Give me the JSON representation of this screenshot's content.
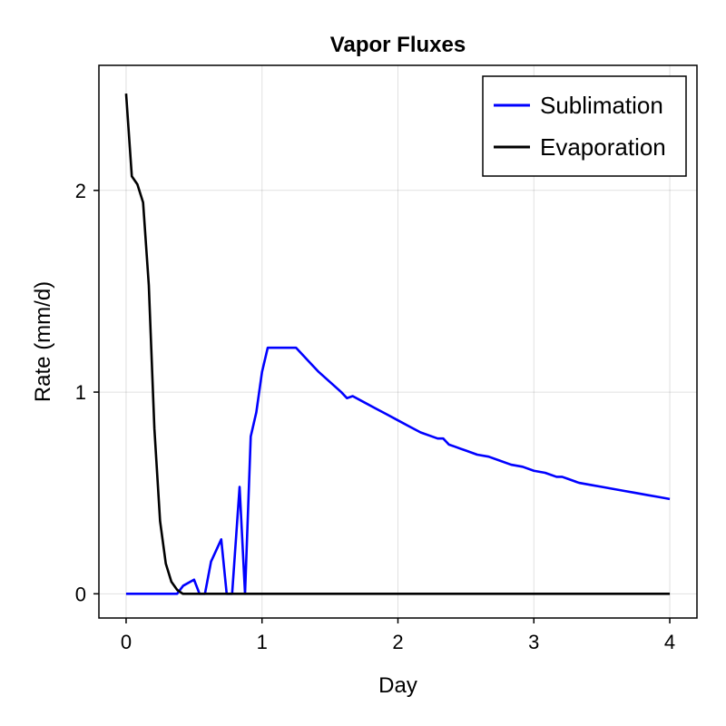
{
  "chart_data": {
    "type": "line",
    "title": "Vapor Fluxes",
    "xlabel": "Day",
    "ylabel": "Rate (mm/d)",
    "xlim": [
      -0.2,
      4.2
    ],
    "ylim": [
      -0.12,
      2.62
    ],
    "xticks": [
      0,
      1,
      2,
      3,
      4
    ],
    "xtick_labels": [
      "0",
      "1",
      "2",
      "3",
      "4"
    ],
    "yticks": [
      0,
      1,
      2
    ],
    "ytick_labels": [
      "0",
      "1",
      "2"
    ],
    "grid": true,
    "legend_position": "top-right",
    "series": [
      {
        "name": "Sublimation",
        "color": "#0000ff",
        "x": [
          0,
          0.05,
          0.1,
          0.15,
          0.2,
          0.25,
          0.3,
          0.35,
          0.375,
          0.42,
          0.5,
          0.54,
          0.58,
          0.625,
          0.7,
          0.74,
          0.78,
          0.835,
          0.875,
          0.917,
          0.958,
          1.0,
          1.042,
          1.083,
          1.125,
          1.167,
          1.208,
          1.25,
          1.333,
          1.417,
          1.5,
          1.583,
          1.625,
          1.667,
          1.75,
          1.833,
          1.917,
          2.0,
          2.083,
          2.167,
          2.25,
          2.292,
          2.333,
          2.375,
          2.417,
          2.5,
          2.583,
          2.667,
          2.75,
          2.833,
          2.917,
          3.0,
          3.083,
          3.167,
          3.208,
          3.25,
          3.333,
          3.417,
          3.5,
          3.583,
          3.667,
          3.75,
          3.833,
          3.917,
          4.0
        ],
        "y": [
          0,
          0,
          0,
          0,
          0,
          0,
          0,
          0,
          0,
          0.04,
          0.07,
          0,
          0,
          0.16,
          0.27,
          0,
          0,
          0.53,
          0,
          0.78,
          0.9,
          1.1,
          1.22,
          1.22,
          1.22,
          1.22,
          1.22,
          1.22,
          1.16,
          1.1,
          1.05,
          1.0,
          0.97,
          0.98,
          0.95,
          0.92,
          0.89,
          0.86,
          0.83,
          0.8,
          0.78,
          0.77,
          0.77,
          0.74,
          0.73,
          0.71,
          0.69,
          0.68,
          0.66,
          0.64,
          0.63,
          0.61,
          0.6,
          0.58,
          0.58,
          0.57,
          0.55,
          0.54,
          0.53,
          0.52,
          0.51,
          0.5,
          0.49,
          0.48,
          0.47
        ]
      },
      {
        "name": "Evaporation",
        "color": "#000000",
        "x": [
          0,
          0.042,
          0.083,
          0.125,
          0.167,
          0.208,
          0.25,
          0.292,
          0.333,
          0.375,
          0.417,
          0.5,
          1,
          2,
          3,
          4
        ],
        "y": [
          2.48,
          2.07,
          2.03,
          1.94,
          1.53,
          0.82,
          0.36,
          0.15,
          0.06,
          0.02,
          0,
          0,
          0,
          0,
          0,
          0
        ]
      }
    ]
  }
}
